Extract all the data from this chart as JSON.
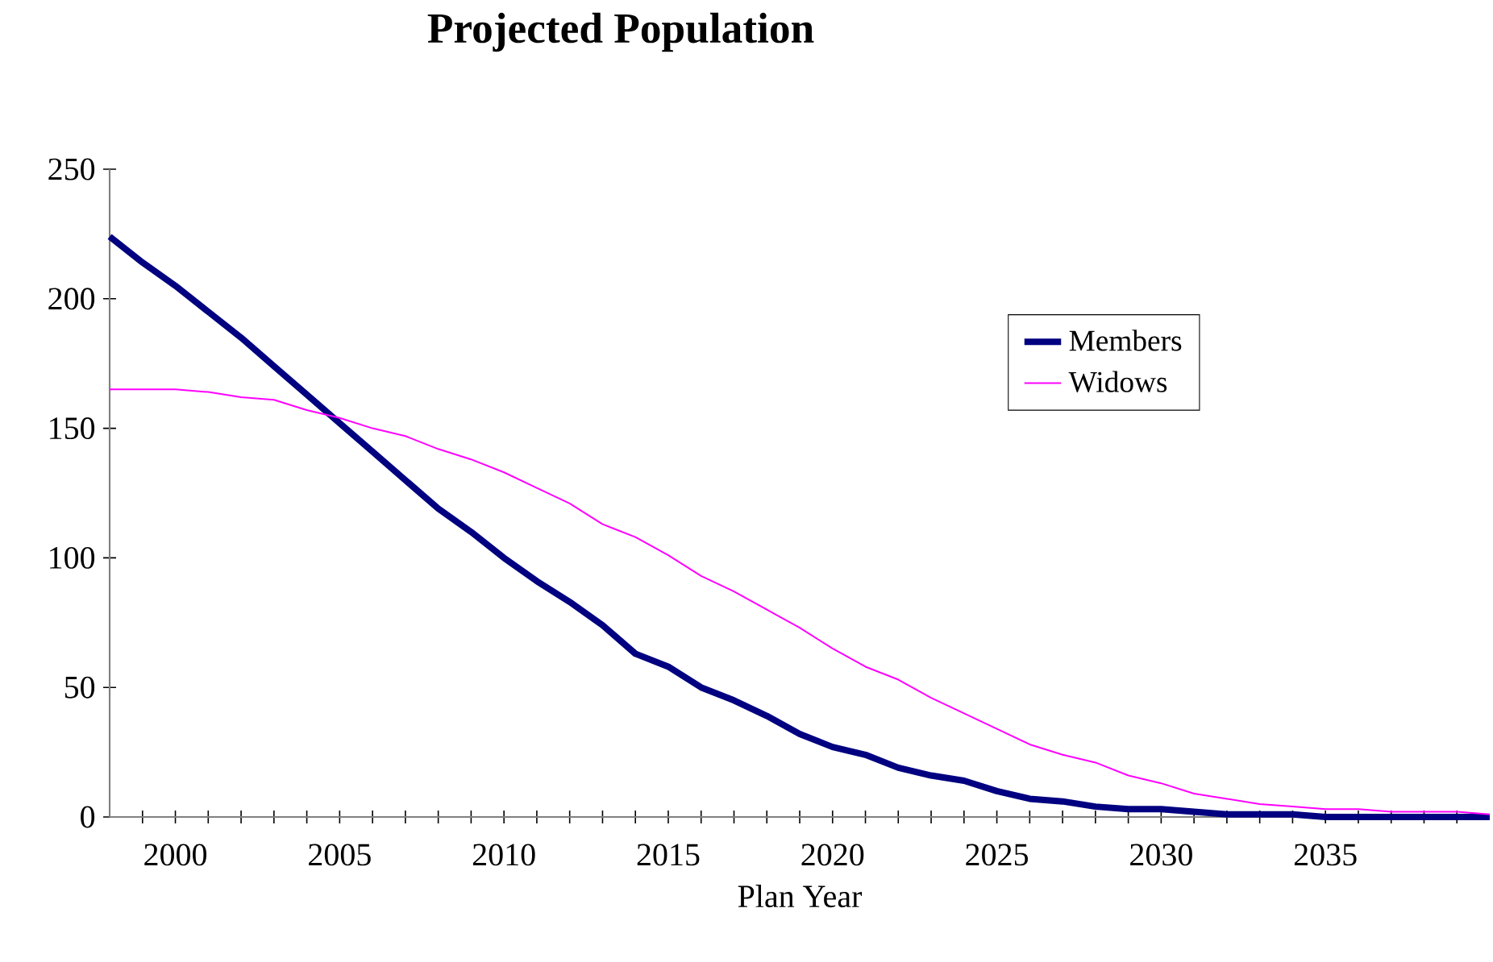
{
  "chart_data": {
    "type": "line",
    "title": "Projected Population",
    "xlabel": "Plan Year",
    "x": [
      1998,
      1999,
      2000,
      2001,
      2002,
      2003,
      2004,
      2005,
      2006,
      2007,
      2008,
      2009,
      2010,
      2011,
      2012,
      2013,
      2014,
      2015,
      2016,
      2017,
      2018,
      2019,
      2020,
      2021,
      2022,
      2023,
      2024,
      2025,
      2026,
      2027,
      2028,
      2029,
      2030,
      2031,
      2032,
      2033,
      2034,
      2035,
      2036,
      2037,
      2038,
      2039,
      2040
    ],
    "series": [
      {
        "name": "Members",
        "color": "#000080",
        "values": [
          224,
          214,
          205,
          195,
          185,
          174,
          163,
          152,
          141,
          130,
          119,
          110,
          100,
          91,
          83,
          74,
          63,
          58,
          50,
          45,
          39,
          32,
          27,
          24,
          19,
          16,
          14,
          10,
          7,
          6,
          4,
          3,
          3,
          2,
          1,
          1,
          1,
          0,
          0,
          0,
          0,
          0,
          0
        ]
      },
      {
        "name": "Widows",
        "color": "#ff00ff",
        "values": [
          165,
          165,
          165,
          164,
          162,
          161,
          157,
          154,
          150,
          147,
          142,
          138,
          133,
          127,
          121,
          113,
          108,
          101,
          93,
          87,
          80,
          73,
          65,
          58,
          53,
          46,
          40,
          34,
          28,
          24,
          21,
          16,
          13,
          9,
          7,
          5,
          4,
          3,
          3,
          2,
          2,
          2,
          1
        ]
      }
    ],
    "xlim": [
      1998,
      2040
    ],
    "ylim": [
      0,
      250
    ],
    "xticks": [
      {
        "value": 1999,
        "label": null
      },
      2000,
      {
        "value": 2001,
        "label": null
      },
      {
        "value": 2002,
        "label": null
      },
      {
        "value": 2003,
        "label": null
      },
      {
        "value": 2004,
        "label": null
      },
      2005,
      {
        "value": 2006,
        "label": null
      },
      {
        "value": 2007,
        "label": null
      },
      {
        "value": 2008,
        "label": null
      },
      {
        "value": 2009,
        "label": null
      },
      2010,
      {
        "value": 2011,
        "label": null
      },
      {
        "value": 2012,
        "label": null
      },
      {
        "value": 2013,
        "label": null
      },
      {
        "value": 2014,
        "label": null
      },
      2015,
      {
        "value": 2016,
        "label": null
      },
      {
        "value": 2017,
        "label": null
      },
      {
        "value": 2018,
        "label": null
      },
      {
        "value": 2019,
        "label": null
      },
      2020,
      {
        "value": 2021,
        "label": null
      },
      {
        "value": 2022,
        "label": null
      },
      {
        "value": 2023,
        "label": null
      },
      {
        "value": 2024,
        "label": null
      },
      2025,
      {
        "value": 2026,
        "label": null
      },
      {
        "value": 2027,
        "label": null
      },
      {
        "value": 2028,
        "label": null
      },
      {
        "value": 2029,
        "label": null
      },
      2030,
      {
        "value": 2031,
        "label": null
      },
      {
        "value": 2032,
        "label": null
      },
      {
        "value": 2033,
        "label": null
      },
      {
        "value": 2034,
        "label": null
      },
      2035,
      {
        "value": 2036,
        "label": null
      },
      {
        "value": 2037,
        "label": null
      },
      {
        "value": 2038,
        "label": null
      },
      {
        "value": 2039,
        "label": null
      }
    ],
    "yticks": [
      0,
      50,
      100,
      150,
      200,
      250
    ],
    "legend": "right"
  }
}
